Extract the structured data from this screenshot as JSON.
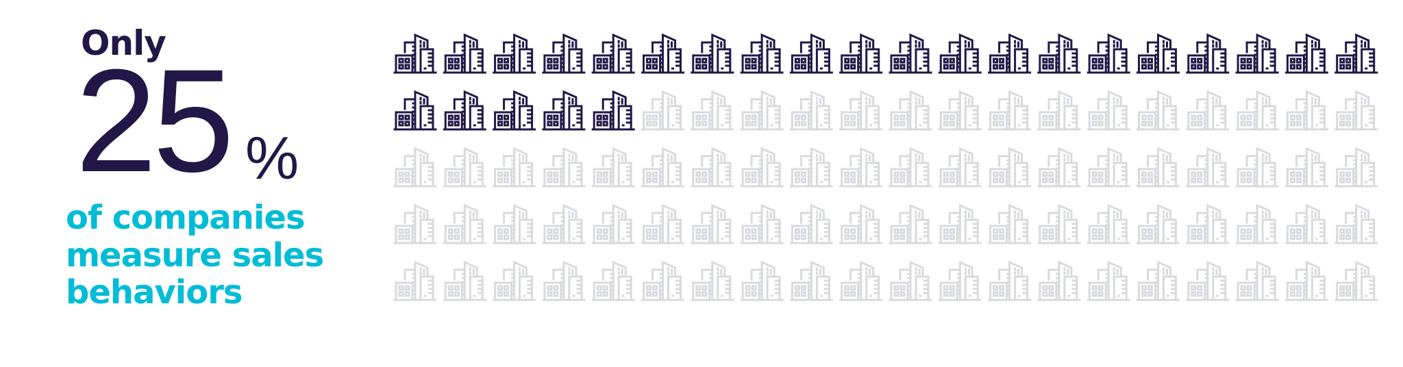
{
  "headline": {
    "prefix": "Only",
    "value": "25",
    "unit": "%"
  },
  "caption": [
    "of companies",
    "measure sales",
    "behaviors"
  ],
  "colors": {
    "filled": "#211847",
    "empty": "#d9dadc",
    "caption": "#00bcd6"
  },
  "chart_data": {
    "type": "pictograph",
    "icon": "office-buildings-icon",
    "total": 100,
    "filled": 25,
    "rows": 5,
    "columns": 20,
    "value_percent": 25
  }
}
